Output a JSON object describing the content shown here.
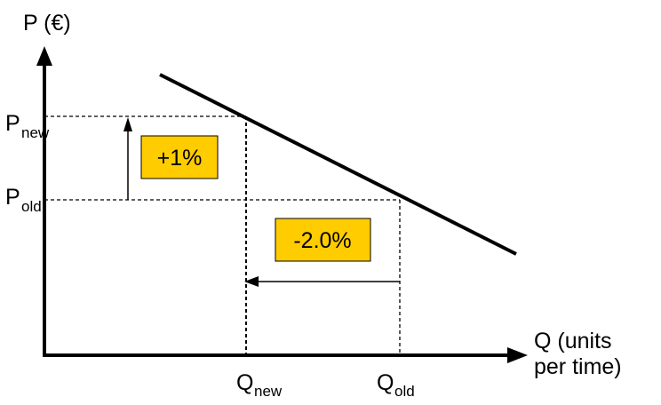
{
  "axes": {
    "y_label": "P (€)",
    "x_label_line1": "Q (units",
    "x_label_line2": "per time)"
  },
  "price_labels": {
    "new_base": "P",
    "new_sub": "new",
    "old_base": "P",
    "old_sub": "old"
  },
  "quantity_labels": {
    "new_base": "Q",
    "new_sub": "new",
    "old_base": "Q",
    "old_sub": "old"
  },
  "annotations": {
    "price_change": "+1%",
    "quantity_change": "-2.0%"
  },
  "colors": {
    "box_fill": "#FFCC00",
    "line": "#000000"
  }
}
